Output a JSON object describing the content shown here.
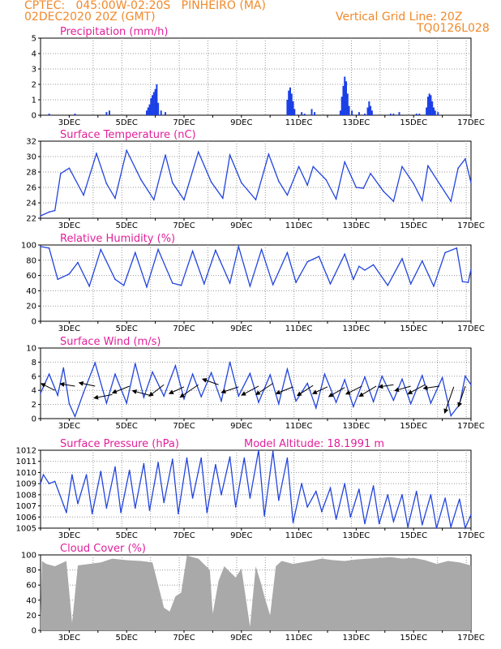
{
  "header": {
    "line1_left": "CPTEC:   045:00W-02:20S   PINHEIRO (MA)",
    "line2_left": "02DEC2020 20Z (GMT)",
    "line2_right": "Vertical Grid Line: 20Z",
    "line3_right": "TQ0126L028"
  },
  "colors": {
    "line": "#2244dd",
    "bar": "#1a3fe6",
    "cloud": "#a9a9a9",
    "title": "#e0209a",
    "header": "#f08a2c"
  },
  "x_ticks": [
    "3DEC",
    "5DEC",
    "7DEC",
    "9DEC",
    "11DEC",
    "13DEC",
    "15DEC",
    "17DEC"
  ],
  "chart_data": [
    {
      "type": "bar",
      "title": "Precipitation (mm/h)",
      "ylim": [
        0,
        5
      ],
      "yticks": [
        0,
        1,
        2,
        3,
        4,
        5
      ],
      "x": [
        2.3,
        3.2,
        4.3,
        4.4,
        5.7,
        5.75,
        5.8,
        5.85,
        5.9,
        5.95,
        6.0,
        6.05,
        6.1,
        6.2,
        6.35,
        10.6,
        10.65,
        10.7,
        10.75,
        10.8,
        10.85,
        11.1,
        11.2,
        11.45,
        11.55,
        12.45,
        12.5,
        12.55,
        12.6,
        12.65,
        12.7,
        12.75,
        12.85,
        13.1,
        13.3,
        13.4,
        13.45,
        13.5,
        13.55,
        14.2,
        14.3,
        14.5,
        15.1,
        15.2,
        15.45,
        15.5,
        15.55,
        15.6,
        15.65,
        15.7,
        15.75,
        15.85
      ],
      "values": [
        0.1,
        0.1,
        0.2,
        0.3,
        0.3,
        0.5,
        0.7,
        1.1,
        1.3,
        1.5,
        1.7,
        2.0,
        0.8,
        0.3,
        0.2,
        1.0,
        1.6,
        1.8,
        1.4,
        0.9,
        0.4,
        0.2,
        0.1,
        0.4,
        0.2,
        0.3,
        1.2,
        1.9,
        2.5,
        2.2,
        1.4,
        0.6,
        0.3,
        0.2,
        0.1,
        0.5,
        0.9,
        0.6,
        0.3,
        0.1,
        0.1,
        0.2,
        0.1,
        0.1,
        0.5,
        1.2,
        1.4,
        1.3,
        0.9,
        0.5,
        0.3,
        0.2
      ]
    },
    {
      "type": "line",
      "title": "Surface Temperature (nC)",
      "ylim": [
        22,
        32
      ],
      "yticks": [
        22,
        24,
        26,
        28,
        30,
        32
      ],
      "x": [
        2.0,
        2.3,
        2.5,
        2.7,
        3.0,
        3.5,
        3.95,
        4.3,
        4.6,
        5.0,
        5.5,
        5.95,
        6.35,
        6.6,
        7.0,
        7.5,
        7.95,
        8.35,
        8.6,
        9.0,
        9.5,
        9.95,
        10.3,
        10.6,
        11.0,
        11.3,
        11.5,
        11.95,
        12.3,
        12.6,
        13.0,
        13.25,
        13.5,
        13.95,
        14.3,
        14.6,
        15.0,
        15.3,
        15.5,
        15.95,
        16.3,
        16.55,
        16.8,
        17.0
      ],
      "values": [
        22.3,
        22.8,
        23.0,
        27.8,
        28.5,
        25.0,
        30.4,
        26.5,
        24.6,
        30.8,
        27.0,
        24.4,
        30.2,
        26.6,
        24.4,
        30.6,
        26.7,
        24.6,
        30.2,
        26.6,
        24.4,
        30.3,
        26.8,
        25.0,
        28.7,
        26.3,
        28.7,
        27.0,
        24.5,
        29.3,
        26.0,
        25.9,
        27.8,
        25.5,
        24.2,
        28.7,
        26.5,
        24.3,
        28.8,
        26.2,
        24.2,
        28.5,
        29.7,
        26.6
      ]
    },
    {
      "type": "line",
      "title": "Relative Humidity (%)",
      "ylim": [
        0,
        100
      ],
      "yticks": [
        0,
        20,
        40,
        60,
        80,
        100
      ],
      "x": [
        2.0,
        2.3,
        2.6,
        3.0,
        3.3,
        3.7,
        4.1,
        4.6,
        4.9,
        5.3,
        5.7,
        6.1,
        6.6,
        6.9,
        7.3,
        7.7,
        8.1,
        8.6,
        8.9,
        9.3,
        9.7,
        10.1,
        10.6,
        10.9,
        11.3,
        11.7,
        12.1,
        12.6,
        12.9,
        13.1,
        13.3,
        13.6,
        14.1,
        14.6,
        14.9,
        15.3,
        15.7,
        16.1,
        16.5,
        16.7,
        16.9,
        17.0
      ],
      "values": [
        98,
        96,
        55,
        62,
        77,
        46,
        94,
        55,
        47,
        90,
        45,
        94,
        50,
        47,
        92,
        49,
        93,
        50,
        98,
        46,
        94,
        48,
        90,
        51,
        78,
        85,
        49,
        88,
        55,
        72,
        67,
        74,
        47,
        82,
        49,
        79,
        46,
        90,
        96,
        52,
        51,
        68
      ]
    },
    {
      "type": "line",
      "title": "Surface Wind (m/s)",
      "ylim": [
        0,
        10
      ],
      "yticks": [
        0,
        2,
        4,
        6,
        8,
        10
      ],
      "x": [
        2.0,
        2.3,
        2.6,
        2.8,
        3.0,
        3.2,
        3.5,
        3.9,
        4.3,
        4.6,
        5.0,
        5.3,
        5.6,
        5.9,
        6.3,
        6.7,
        7.0,
        7.3,
        7.6,
        7.95,
        8.3,
        8.6,
        8.9,
        9.3,
        9.6,
        10.0,
        10.3,
        10.6,
        10.9,
        11.3,
        11.6,
        11.9,
        12.3,
        12.6,
        12.9,
        13.3,
        13.6,
        13.9,
        14.3,
        14.6,
        14.9,
        15.3,
        15.6,
        16.0,
        16.3,
        16.6,
        16.8,
        17.0
      ],
      "values": [
        3.6,
        6.3,
        3.3,
        7.2,
        2.1,
        0.3,
        3.7,
        7.9,
        2.2,
        6.3,
        2.2,
        7.8,
        3.0,
        6.6,
        3.2,
        7.5,
        2.8,
        6.3,
        3.1,
        6.5,
        2.5,
        8.0,
        3.2,
        6.4,
        2.3,
        6.2,
        2.1,
        7.0,
        2.5,
        5.0,
        1.5,
        6.3,
        2.3,
        5.5,
        1.7,
        5.9,
        2.4,
        6.0,
        2.6,
        5.6,
        2.1,
        6.1,
        2.2,
        5.8,
        0.4,
        2.0,
        6.0,
        4.8
      ],
      "vectors": [
        [
          2.5,
          4.0,
          -1.2,
          0.6
        ],
        [
          3.2,
          4.6,
          -1.3,
          0.2
        ],
        [
          3.9,
          4.6,
          -1.4,
          0.3
        ],
        [
          4.5,
          3.4,
          -1.6,
          -0.3
        ],
        [
          5.1,
          4.6,
          -1.5,
          -0.6
        ],
        [
          5.8,
          3.3,
          -1.5,
          0.4
        ],
        [
          6.3,
          4.8,
          -1.3,
          -1.0
        ],
        [
          7.0,
          4.5,
          -1.3,
          -0.6
        ],
        [
          7.5,
          4.8,
          -1.6,
          -1.1
        ],
        [
          8.2,
          4.8,
          -1.4,
          0.5
        ],
        [
          8.9,
          4.5,
          -1.5,
          -0.5
        ],
        [
          9.6,
          4.6,
          -1.5,
          -0.8
        ],
        [
          10.1,
          5.0,
          -1.5,
          -1.0
        ],
        [
          10.8,
          4.5,
          -1.5,
          -0.6
        ],
        [
          11.5,
          4.7,
          -1.4,
          -0.9
        ],
        [
          12.0,
          4.5,
          -1.3,
          -0.6
        ],
        [
          12.6,
          4.4,
          -1.4,
          -0.8
        ],
        [
          13.2,
          4.6,
          -1.4,
          -0.7
        ],
        [
          13.7,
          4.6,
          -1.5,
          -0.9
        ],
        [
          14.3,
          4.8,
          -1.3,
          -0.2
        ],
        [
          14.9,
          4.6,
          -1.4,
          -0.4
        ],
        [
          15.4,
          4.8,
          -1.5,
          -0.8
        ],
        [
          15.9,
          4.6,
          -1.4,
          -0.2
        ],
        [
          16.4,
          4.5,
          -0.8,
          -2.3
        ],
        [
          16.8,
          4.6,
          -0.6,
          -1.8
        ]
      ]
    },
    {
      "type": "line",
      "title": "Surface Pressure (hPa)",
      "annotation": "Model Altitude: 18.1991  m",
      "ylim": [
        1005,
        1012
      ],
      "yticks": [
        1005,
        1006,
        1007,
        1008,
        1009,
        1010,
        1011,
        1012
      ],
      "x": [
        2.0,
        2.1,
        2.3,
        2.5,
        2.9,
        3.1,
        3.3,
        3.6,
        3.8,
        4.1,
        4.3,
        4.6,
        4.8,
        5.1,
        5.3,
        5.6,
        5.8,
        6.1,
        6.3,
        6.6,
        6.8,
        7.1,
        7.3,
        7.6,
        7.8,
        8.1,
        8.3,
        8.6,
        8.8,
        9.1,
        9.3,
        9.6,
        9.8,
        10.1,
        10.3,
        10.6,
        10.8,
        11.1,
        11.3,
        11.6,
        11.8,
        12.1,
        12.3,
        12.6,
        12.8,
        13.1,
        13.3,
        13.6,
        13.8,
        14.1,
        14.3,
        14.6,
        14.8,
        15.1,
        15.3,
        15.6,
        15.8,
        16.1,
        16.3,
        16.6,
        16.8,
        17.0
      ],
      "values": [
        1009.0,
        1009.8,
        1009.0,
        1009.2,
        1006.4,
        1009.8,
        1007.2,
        1009.8,
        1006.3,
        1010.1,
        1006.8,
        1010.5,
        1006.4,
        1010.2,
        1006.8,
        1010.8,
        1006.6,
        1010.9,
        1007.3,
        1011.2,
        1006.3,
        1011.3,
        1007.7,
        1011.3,
        1006.4,
        1010.7,
        1008.0,
        1011.4,
        1006.9,
        1011.3,
        1007.7,
        1012.2,
        1006.1,
        1011.9,
        1007.5,
        1011.3,
        1005.5,
        1009.0,
        1006.9,
        1008.3,
        1006.5,
        1008.6,
        1005.8,
        1009.0,
        1006.0,
        1008.5,
        1005.4,
        1008.8,
        1005.4,
        1008.0,
        1005.6,
        1008.0,
        1005.1,
        1008.3,
        1005.3,
        1008.0,
        1005.0,
        1007.7,
        1005.1,
        1007.6,
        1005.0,
        1006.2
      ]
    },
    {
      "type": "area",
      "title": "Cloud Cover (%)",
      "ylim": [
        0,
        100
      ],
      "yticks": [
        0,
        20,
        40,
        60,
        80,
        100
      ],
      "x": [
        2.0,
        2.05,
        2.2,
        2.5,
        2.9,
        3.1,
        3.3,
        3.7,
        4.1,
        4.5,
        5.0,
        5.5,
        5.9,
        6.3,
        6.5,
        6.7,
        6.9,
        7.1,
        7.5,
        7.9,
        8.0,
        8.2,
        8.4,
        8.8,
        9.0,
        9.3,
        9.5,
        9.7,
        9.8,
        10.0,
        10.2,
        10.4,
        10.6,
        10.8,
        11.1,
        11.4,
        11.8,
        12.2,
        12.6,
        13.0,
        13.4,
        13.8,
        14.2,
        14.6,
        15.0,
        15.4,
        15.8,
        16.2,
        16.6,
        17.0
      ],
      "values": [
        20,
        92,
        88,
        85,
        92,
        10,
        86,
        88,
        90,
        95,
        93,
        92,
        90,
        30,
        25,
        45,
        50,
        99,
        95,
        80,
        22,
        65,
        85,
        70,
        82,
        5,
        85,
        60,
        45,
        20,
        85,
        92,
        90,
        88,
        90,
        92,
        95,
        93,
        92,
        94,
        95,
        96,
        97,
        95,
        96,
        93,
        88,
        92,
        90,
        86
      ]
    }
  ]
}
